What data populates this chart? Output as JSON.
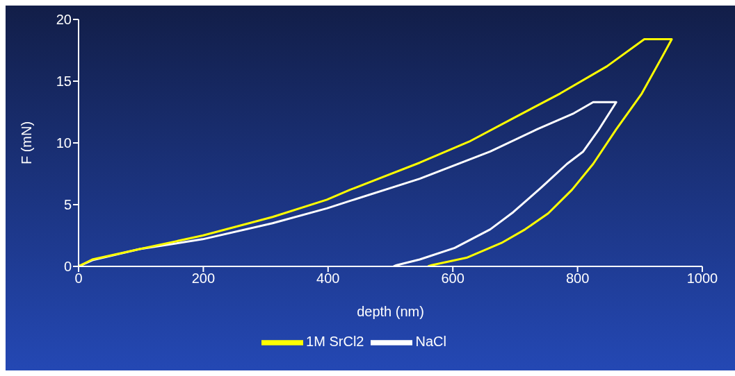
{
  "chart_data": {
    "type": "line",
    "xlabel": "depth (nm)",
    "ylabel": "F (mN)",
    "xlim": [
      0,
      1000
    ],
    "xticks": [
      0,
      200,
      400,
      600,
      800,
      1000
    ],
    "ylim": [
      0,
      20
    ],
    "yticks": [
      0,
      5,
      10,
      15,
      20
    ],
    "grid": false,
    "legend": "bottom",
    "marker": "none",
    "line_style": "solid",
    "series": [
      {
        "name": "NaCl",
        "color": "#ffffff",
        "x": [
          0,
          22,
          98,
          199,
          311,
          398,
          435,
          547,
          660,
          735,
          794,
          825,
          862,
          833,
          809,
          783,
          742,
          697,
          660,
          603,
          547,
          510,
          505
        ],
        "values": [
          0,
          0.5,
          1.4,
          2.2,
          3.5,
          4.7,
          5.3,
          7.1,
          9.3,
          11.1,
          12.4,
          13.3,
          13.3,
          11.0,
          9.3,
          8.3,
          6.4,
          4.4,
          3.0,
          1.5,
          0.56,
          0.1,
          0
        ]
      },
      {
        "name": "1M SrCl2",
        "color": "#ffff00",
        "x": [
          0,
          22,
          98,
          199,
          311,
          398,
          435,
          547,
          626,
          697,
          772,
          847,
          907,
          951,
          937,
          903,
          862,
          825,
          791,
          753,
          716,
          678,
          622,
          566,
          560
        ],
        "values": [
          0,
          0.56,
          1.4,
          2.5,
          4.0,
          5.4,
          6.2,
          8.4,
          10.1,
          12.0,
          14.0,
          16.2,
          18.4,
          18.4,
          17.1,
          14.0,
          11.1,
          8.3,
          6.2,
          4.3,
          3.0,
          1.9,
          0.7,
          0.1,
          0
        ]
      }
    ]
  }
}
